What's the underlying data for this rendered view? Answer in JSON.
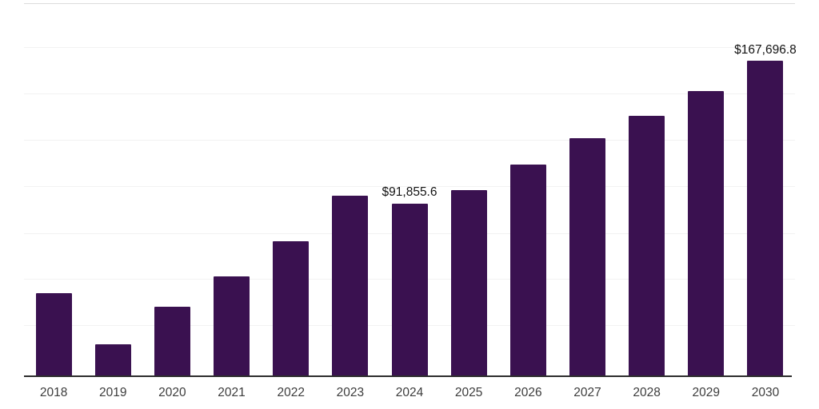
{
  "chart_data": {
    "type": "bar",
    "title": "",
    "xlabel": "",
    "ylabel": "",
    "categories": [
      "2018",
      "2019",
      "2020",
      "2021",
      "2022",
      "2023",
      "2024",
      "2025",
      "2026",
      "2027",
      "2028",
      "2029",
      "2030"
    ],
    "values": [
      44200,
      17200,
      37000,
      53100,
      71800,
      96000,
      91855.6,
      99000,
      112700,
      126700,
      138600,
      151800,
      167696.8
    ],
    "data_labels": {
      "2024": "$91,855.6",
      "2030": "$167,696.8"
    },
    "ylim": [
      0,
      200000
    ],
    "grid": "horizontal-only",
    "legend": "none",
    "colors": {
      "bar": "#3A1150",
      "axis_line": "#2D2D2D",
      "gridline": "#F2F2F2",
      "top_gridline": "#DCDCDC",
      "value_label_text": "#141414",
      "tick_text": "#3C3C3C",
      "background": "#FFFFFF"
    }
  }
}
